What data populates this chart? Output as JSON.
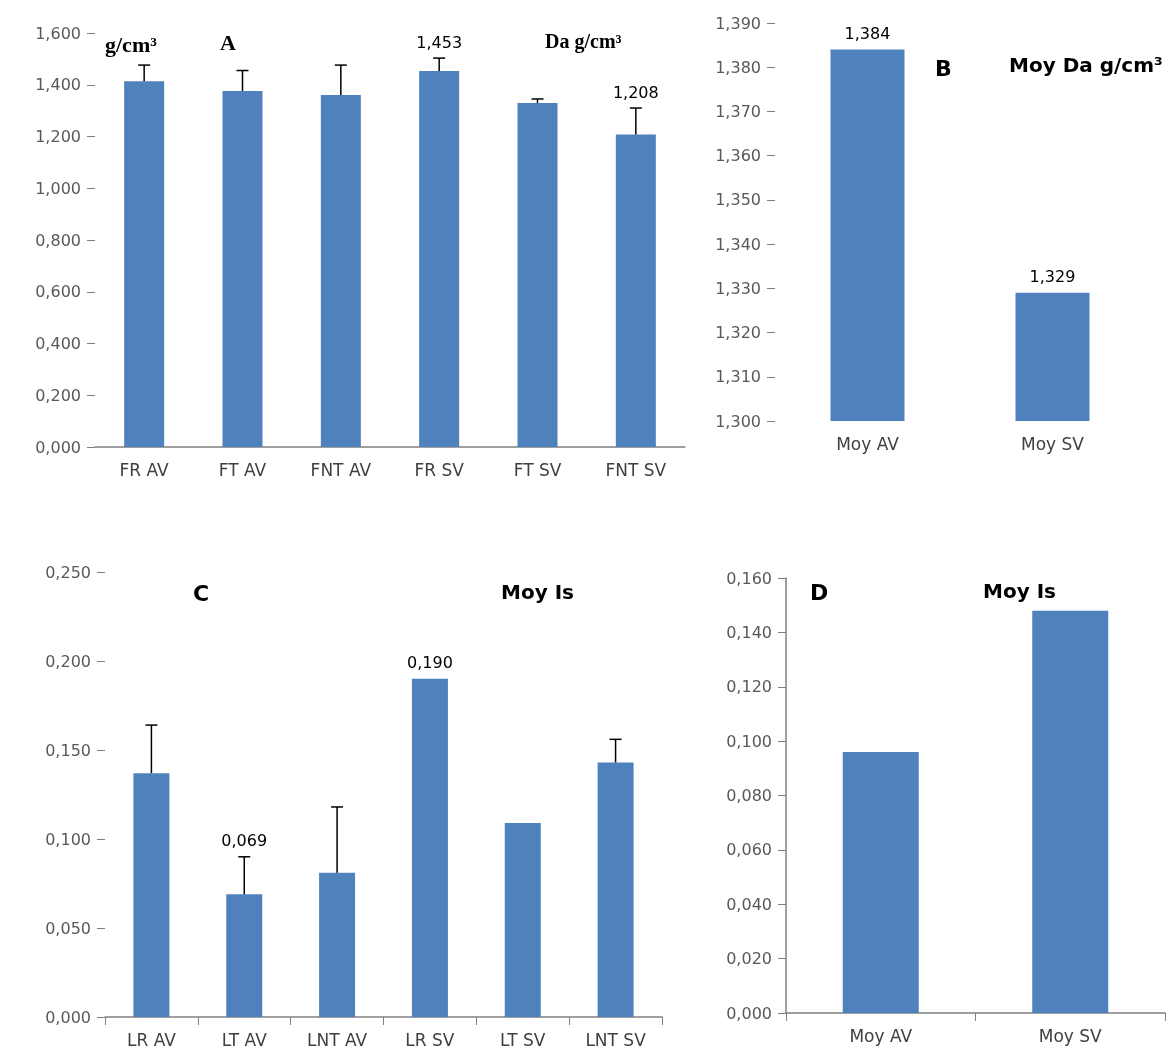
{
  "chart_data": [
    {
      "type": "bar",
      "title": "A",
      "subtitle": "Da g/cm³",
      "ylabel": "g/cm³",
      "categories": [
        "FR AV",
        "FT AV",
        "FNT AV",
        "FR SV",
        "FT SV",
        "FNT SV"
      ],
      "values": [
        1.414,
        1.376,
        1.36,
        1.453,
        1.329,
        1.208
      ],
      "color": "#4f81bd",
      "errors": [
        [
          1.414,
          1.476
        ],
        [
          1.376,
          1.455
        ],
        [
          1.36,
          1.476
        ],
        [
          1.453,
          1.503
        ],
        [
          1.329,
          1.345
        ],
        [
          1.208,
          1.31
        ]
      ],
      "value_labels": [
        null,
        null,
        null,
        "1,453",
        null,
        "1,208"
      ],
      "ylim": [
        0,
        1.6
      ],
      "yticks": [
        {
          "value": 0,
          "label": "0,000"
        },
        {
          "value": 0.2,
          "label": "0,200"
        },
        {
          "value": 0.4,
          "label": "0,400"
        },
        {
          "value": 0.6,
          "label": "0,600"
        },
        {
          "value": 0.8,
          "label": "0,800"
        },
        {
          "value": 1,
          "label": "1,000"
        },
        {
          "value": 1.2,
          "label": "1,200"
        },
        {
          "value": 1.4,
          "label": "1,400"
        },
        {
          "value": 1.6,
          "label": "1,600"
        }
      ]
    },
    {
      "type": "bar",
      "title": "B",
      "subtitle": "Moy Da g/cm³",
      "categories": [
        "Moy AV",
        "Moy SV"
      ],
      "values": [
        1.384,
        1.329
      ],
      "color": "#4f81bd",
      "value_labels": [
        "1,384",
        "1,329"
      ],
      "ylim": [
        1.3,
        1.39
      ],
      "yticks": [
        {
          "value": 1.3,
          "label": "1,300"
        },
        {
          "value": 1.31,
          "label": "1,310"
        },
        {
          "value": 1.32,
          "label": "1,320"
        },
        {
          "value": 1.33,
          "label": "1,330"
        },
        {
          "value": 1.34,
          "label": "1,340"
        },
        {
          "value": 1.35,
          "label": "1,350"
        },
        {
          "value": 1.36,
          "label": "1,360"
        },
        {
          "value": 1.37,
          "label": "1,370"
        },
        {
          "value": 1.38,
          "label": "1,380"
        },
        {
          "value": 1.39,
          "label": "1,390"
        }
      ]
    },
    {
      "type": "bar",
      "title": "C",
      "subtitle": "Moy Is",
      "categories": [
        "LR AV",
        "LT AV",
        "LNT AV",
        "LR SV",
        "LT SV",
        "LNT SV"
      ],
      "values": [
        0.137,
        0.069,
        0.081,
        0.19,
        0.109,
        0.143
      ],
      "color": "#4f81bd",
      "errors": [
        [
          0.137,
          0.164
        ],
        [
          0.069,
          0.09
        ],
        [
          0.081,
          0.118
        ],
        null,
        null,
        [
          0.143,
          0.156
        ]
      ],
      "value_labels": [
        null,
        "0,069",
        null,
        "0,190",
        null,
        null
      ],
      "ylim": [
        0,
        0.25
      ],
      "yticks": [
        {
          "value": 0,
          "label": "0,000"
        },
        {
          "value": 0.05,
          "label": "0,050"
        },
        {
          "value": 0.1,
          "label": "0,100"
        },
        {
          "value": 0.15,
          "label": "0,150"
        },
        {
          "value": 0.2,
          "label": "0,200"
        },
        {
          "value": 0.25,
          "label": "0,250"
        }
      ]
    },
    {
      "type": "bar",
      "title": "D",
      "subtitle": "Moy Is",
      "categories": [
        "Moy AV",
        "Moy SV"
      ],
      "values": [
        0.096,
        0.148
      ],
      "color": "#4f81bd",
      "ylim": [
        0,
        0.16
      ],
      "yticks": [
        {
          "value": 0,
          "label": "0,000"
        },
        {
          "value": 0.02,
          "label": "0,020"
        },
        {
          "value": 0.04,
          "label": "0,040"
        },
        {
          "value": 0.06,
          "label": "0,060"
        },
        {
          "value": 0.08,
          "label": "0,080"
        },
        {
          "value": 0.1,
          "label": "0,100"
        },
        {
          "value": 0.12,
          "label": "0,120"
        },
        {
          "value": 0.14,
          "label": "0,140"
        },
        {
          "value": 0.16,
          "label": "0,160"
        }
      ]
    }
  ]
}
